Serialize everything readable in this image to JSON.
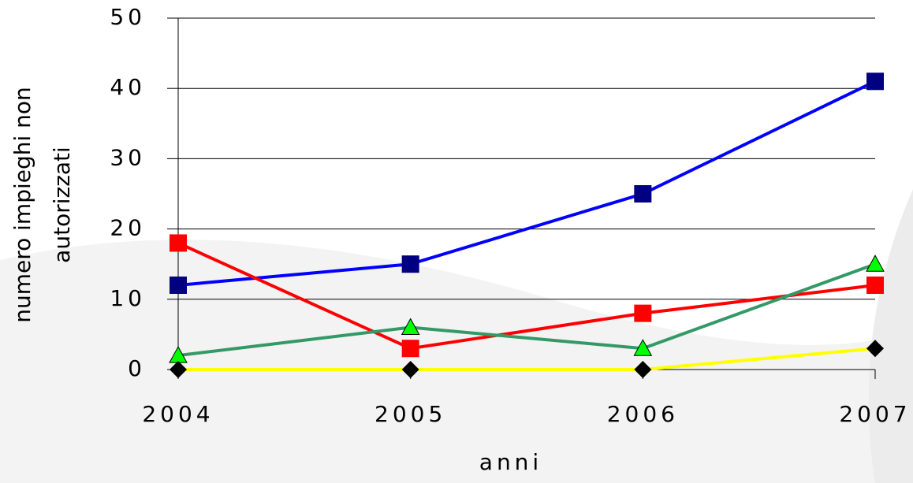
{
  "chart_data": {
    "type": "line",
    "y_label": [
      "numero impieghi non",
      "autorizzati"
    ],
    "x_label": "anni",
    "categories": [
      "2004",
      "2005",
      "2006",
      "2007"
    ],
    "series": [
      {
        "color": "#0000ff",
        "marker": "square",
        "marker_color": "#000080",
        "values": [
          12,
          15,
          25,
          41
        ]
      },
      {
        "color": "#ff0000",
        "marker": "square",
        "marker_color": "#ff0000",
        "values": [
          18,
          3,
          8,
          12
        ]
      },
      {
        "color": "#339966",
        "marker": "triangle",
        "marker_color": "#00ff00",
        "values": [
          2,
          6,
          3,
          15
        ]
      },
      {
        "color": "#ffff00",
        "marker": "diamond",
        "marker_color": "#000000",
        "values": [
          0,
          0,
          0,
          3
        ]
      }
    ],
    "ylim": [
      0,
      50
    ],
    "yticks": [
      0,
      10,
      20,
      30,
      40,
      50
    ],
    "grid": true
  }
}
